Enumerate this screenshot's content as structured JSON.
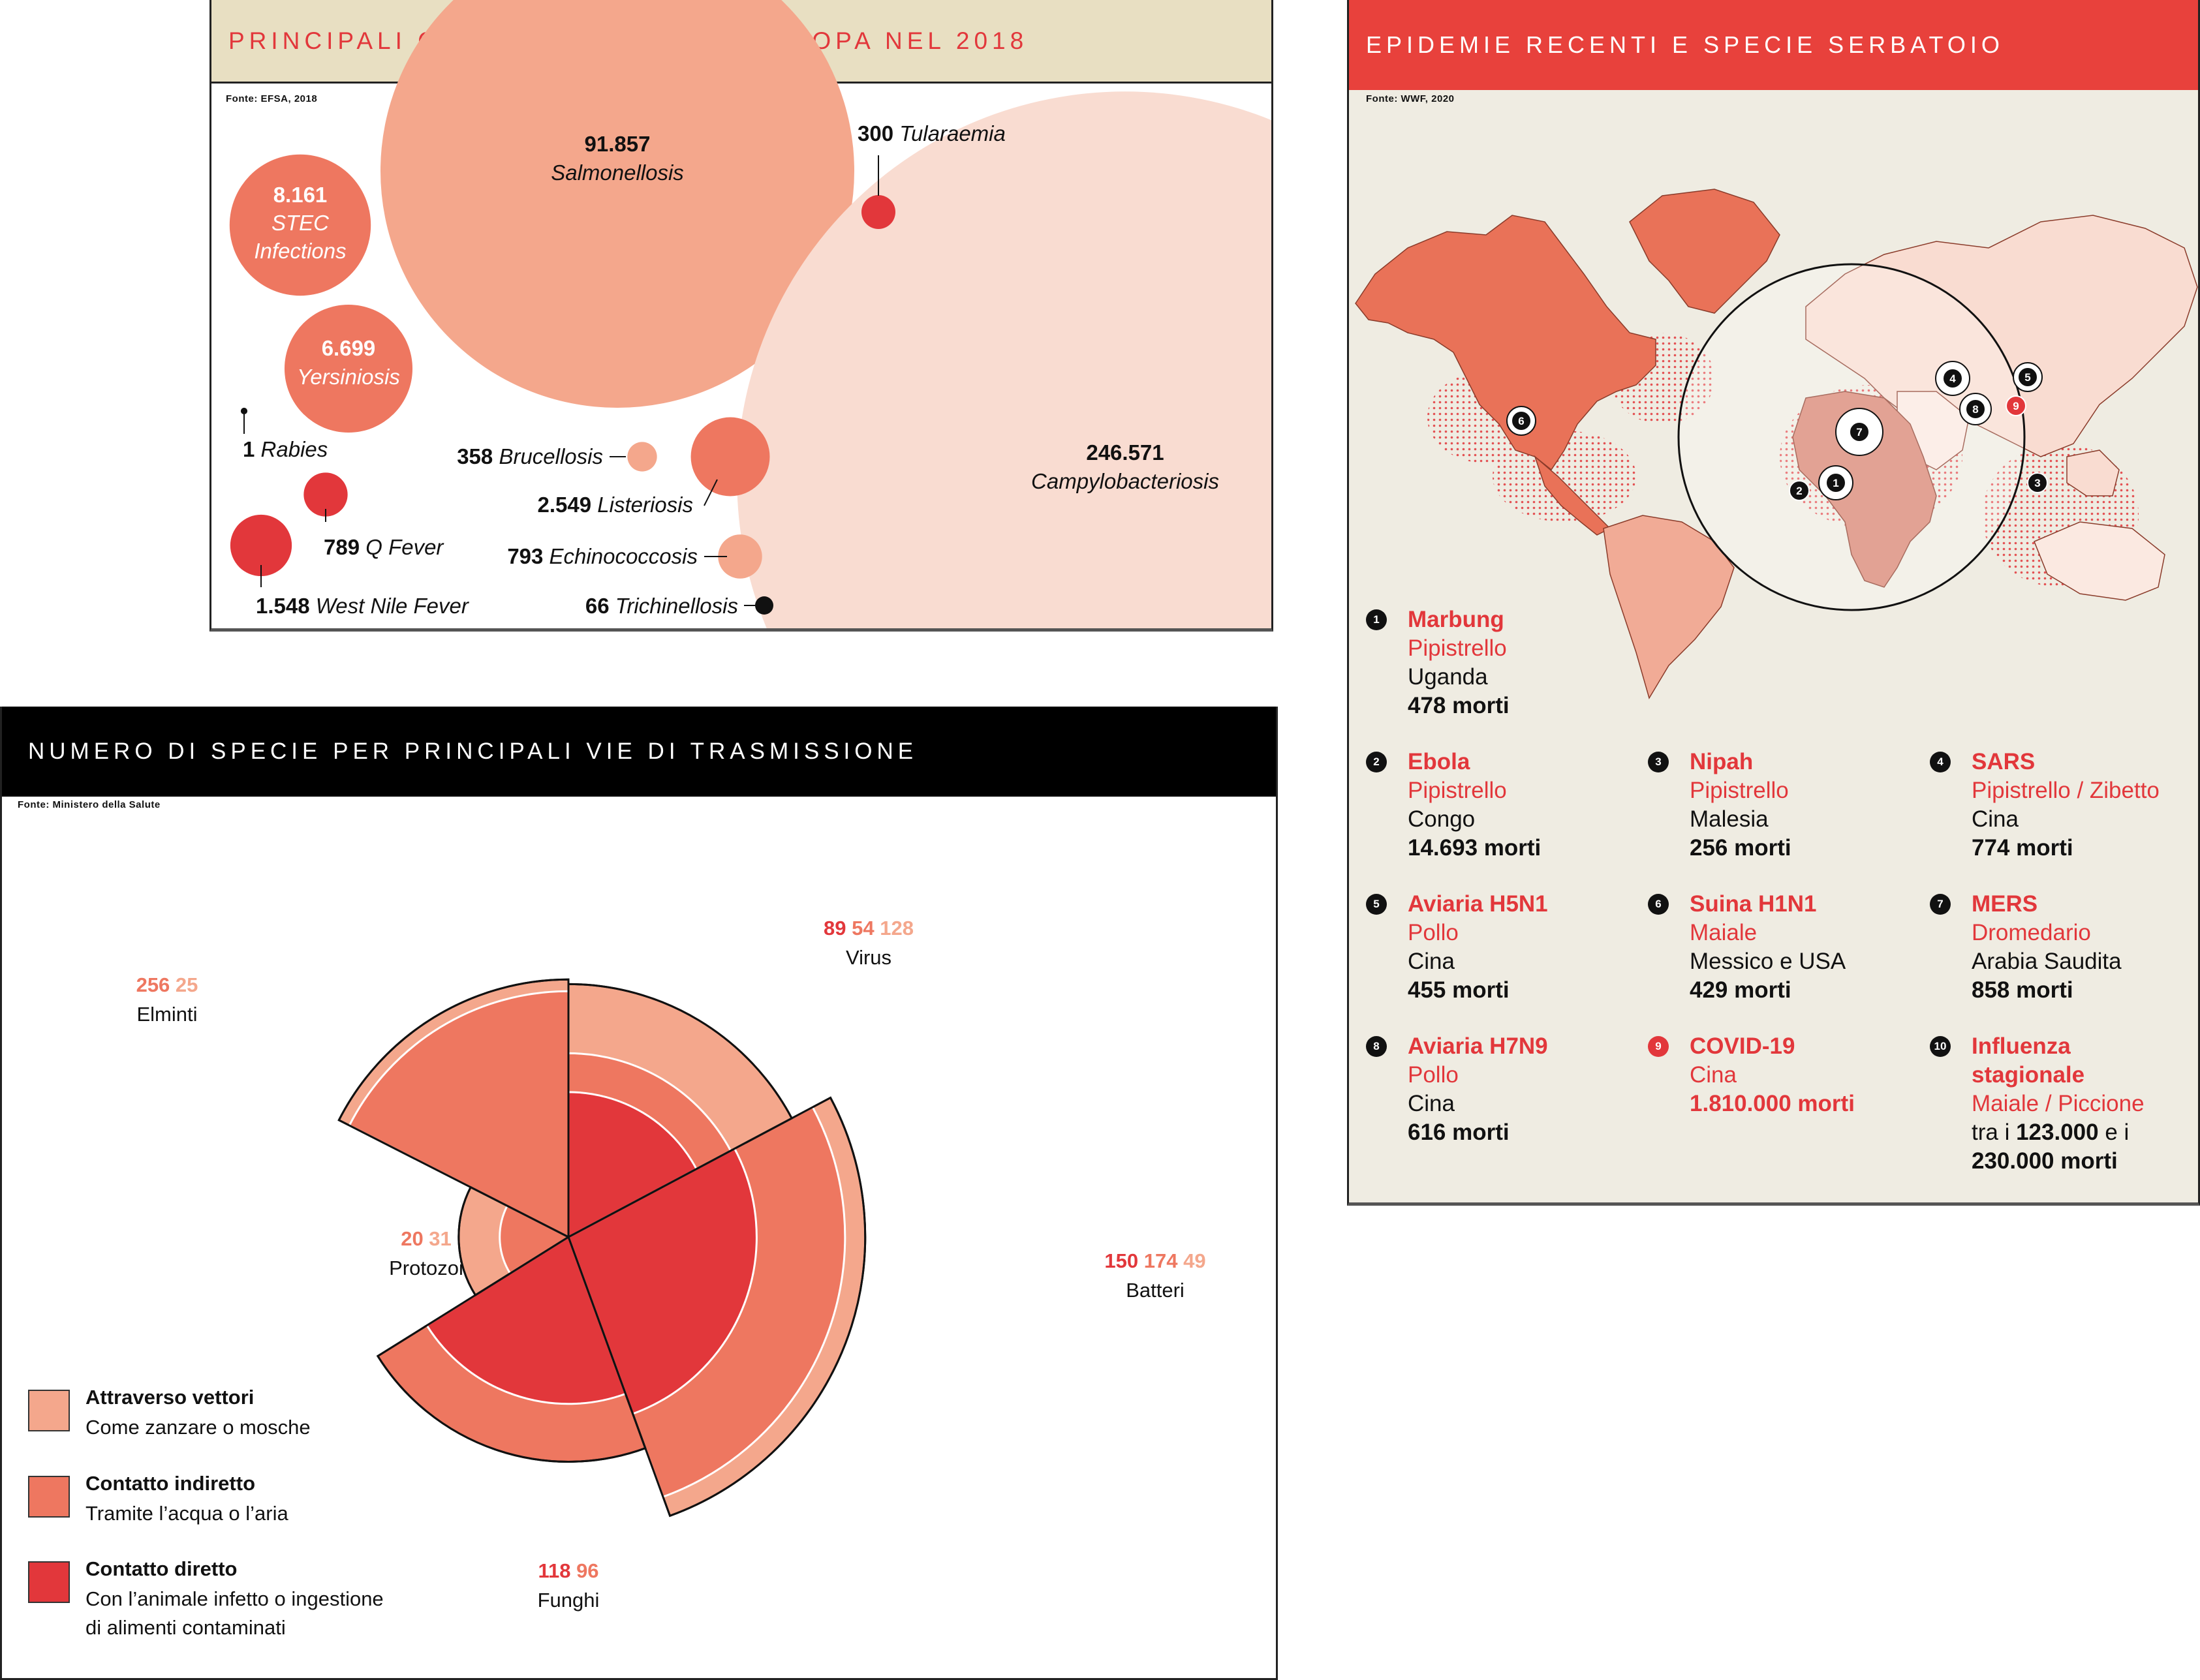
{
  "colors": {
    "light": "#f9dcd1",
    "pale": "#f4a78c",
    "mid": "#ee7760",
    "red": "#e2373b",
    "black": "#111111",
    "zoonosi_header_bg": "#e8dfc2",
    "epidemie_header_bg": "#e8413c",
    "map_panel_bg": "#efece2",
    "specie_header_bg": "#000000"
  },
  "zoonosi": {
    "title": "PRINCIPALI CASI DI ZOONOSI IN EUROPA NEL 2018",
    "source": "Fonte: EFSA, 2018",
    "chart_data": {
      "type": "bubble",
      "title": "PRINCIPALI CASI DI ZOONOSI IN EUROPA NEL 2018",
      "series": [
        {
          "label": "Salmonellosis",
          "value": 91857,
          "value_label": "91.857",
          "color": "pale"
        },
        {
          "label": "Campylobacteriosis",
          "value": 246571,
          "value_label": "246.571",
          "color": "light"
        },
        {
          "label": "STEC Infections",
          "value": 8161,
          "value_label": "8.161",
          "color": "mid"
        },
        {
          "label": "Yersiniosis",
          "value": 6699,
          "value_label": "6.699",
          "color": "mid"
        },
        {
          "label": "Tularaemia",
          "value": 300,
          "value_label": "300",
          "color": "red"
        },
        {
          "label": "Rabies",
          "value": 1,
          "value_label": "1",
          "color": "black"
        },
        {
          "label": "Brucellosis",
          "value": 358,
          "value_label": "358",
          "color": "pale"
        },
        {
          "label": "Listeriosis",
          "value": 2549,
          "value_label": "2.549",
          "color": "mid"
        },
        {
          "label": "Q Fever",
          "value": 789,
          "value_label": "789",
          "color": "red"
        },
        {
          "label": "West Nile Fever",
          "value": 1548,
          "value_label": "1.548",
          "color": "red"
        },
        {
          "label": "Echinococcosis",
          "value": 793,
          "value_label": "793",
          "color": "pale"
        },
        {
          "label": "Trichinellosis",
          "value": 66,
          "value_label": "66",
          "color": "black"
        }
      ]
    }
  },
  "epidemie": {
    "title": "EPIDEMIE RECENTI E SPECIE SERBATOIO",
    "source": "Fonte: WWF, 2020",
    "items": [
      {
        "n": "1",
        "name": "Marbung",
        "species": "Pipistrello",
        "place": "Uganda",
        "deaths": "478 morti"
      },
      {
        "n": "2",
        "name": "Ebola",
        "species": "Pipistrello",
        "place": "Congo",
        "deaths": "14.693 morti"
      },
      {
        "n": "3",
        "name": "Nipah",
        "species": "Pipistrello",
        "place": "Malesia",
        "deaths": "256 morti"
      },
      {
        "n": "4",
        "name": "SARS",
        "species": "Pipistrello / Zibetto",
        "place": "Cina",
        "deaths": "774 morti"
      },
      {
        "n": "5",
        "name": "Aviaria H5N1",
        "species": "Pollo",
        "place": "Cina",
        "deaths": "455 morti"
      },
      {
        "n": "6",
        "name": "Suina H1N1",
        "species": "Maiale",
        "place": "Messico e USA",
        "deaths": "429 morti"
      },
      {
        "n": "7",
        "name": "MERS",
        "species": "Dromedario",
        "place": "Arabia Saudita",
        "deaths": "858 morti"
      },
      {
        "n": "8",
        "name": "Aviaria H7N9",
        "species": "Pollo",
        "place": "Cina",
        "deaths": "616 morti"
      },
      {
        "n": "9",
        "name": "COVID-19",
        "place_red": "Cina",
        "deaths": "1.810.000 morti"
      },
      {
        "n": "10",
        "name": "Influenza",
        "name2": "stagionale",
        "species": "Maiale / Piccione",
        "deaths_pre": "tra i",
        "deaths_a": "123.000",
        "deaths_mid": "e i",
        "deaths_b": "230.000 morti"
      }
    ]
  },
  "specie": {
    "title": "NUMERO DI SPECIE PER PRINCIPALI VIE DI TRASMISSIONE",
    "source": "Fonte: Ministero della Salute",
    "chart_data": {
      "type": "polar-area",
      "title": "NUMERO DI SPECIE PER PRINCIPALI VIE DI TRASMISSIONE",
      "series_names": [
        "Contatto diretto",
        "Contatto indiretto",
        "Attraverso vettori"
      ],
      "categories": [
        {
          "name": "Virus",
          "values": [
            {
              "v": 89,
              "key": "direct"
            },
            {
              "v": 54,
              "key": "indirect"
            },
            {
              "v": 128,
              "key": "vector"
            }
          ]
        },
        {
          "name": "Batteri",
          "values": [
            {
              "v": 150,
              "key": "direct"
            },
            {
              "v": 174,
              "key": "indirect"
            },
            {
              "v": 49,
              "key": "vector"
            }
          ]
        },
        {
          "name": "Funghi",
          "values": [
            {
              "v": 118,
              "key": "direct"
            },
            {
              "v": 96,
              "key": "indirect"
            }
          ]
        },
        {
          "name": "Protozoi",
          "values": [
            {
              "v": 20,
              "key": "indirect"
            },
            {
              "v": 31,
              "key": "vector"
            }
          ]
        },
        {
          "name": "Elminti",
          "values": [
            {
              "v": 256,
              "key": "indirect"
            },
            {
              "v": 25,
              "key": "vector"
            }
          ]
        }
      ]
    },
    "legend": [
      {
        "key": "vector",
        "title": "Attraverso vettori",
        "desc": "Come zanzare o mosche"
      },
      {
        "key": "indirect",
        "title": "Contatto indiretto",
        "desc": "Tramite l’acqua o l’aria"
      },
      {
        "key": "direct",
        "title": "Contatto diretto",
        "desc": "Con l’animale infetto o ingestione",
        "desc2": "di alimenti contaminati"
      }
    ]
  }
}
